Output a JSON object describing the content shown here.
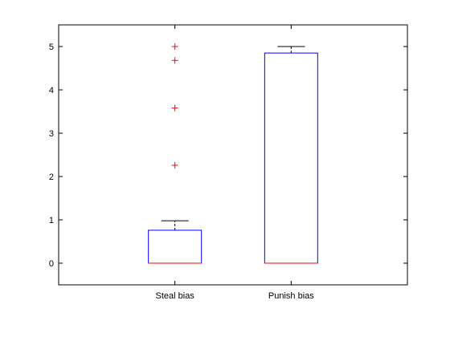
{
  "chart_data": {
    "type": "box",
    "title": "",
    "xlabel": "",
    "ylabel": "",
    "ylim": [
      -0.5,
      5.5
    ],
    "y_ticks": [
      0,
      1,
      2,
      3,
      4,
      5
    ],
    "grid": false,
    "categories": [
      "Steal bias",
      "Punish bias"
    ],
    "boxes": [
      {
        "name": "Steal bias",
        "whisker_low": 0,
        "q1": 0,
        "median": 0,
        "q3": 0.76,
        "whisker_high": 0.98,
        "outliers": [
          2.26,
          3.58,
          4.68,
          5.0
        ]
      },
      {
        "name": "Punish bias",
        "whisker_low": 0,
        "q1": 0,
        "median": 0,
        "q3": 4.85,
        "whisker_high": 5.0,
        "outliers": []
      }
    ],
    "colors": {
      "box": "#0000ff",
      "median": "#ff0000",
      "whisker": "#000000",
      "outlier": "#ff0000"
    }
  }
}
